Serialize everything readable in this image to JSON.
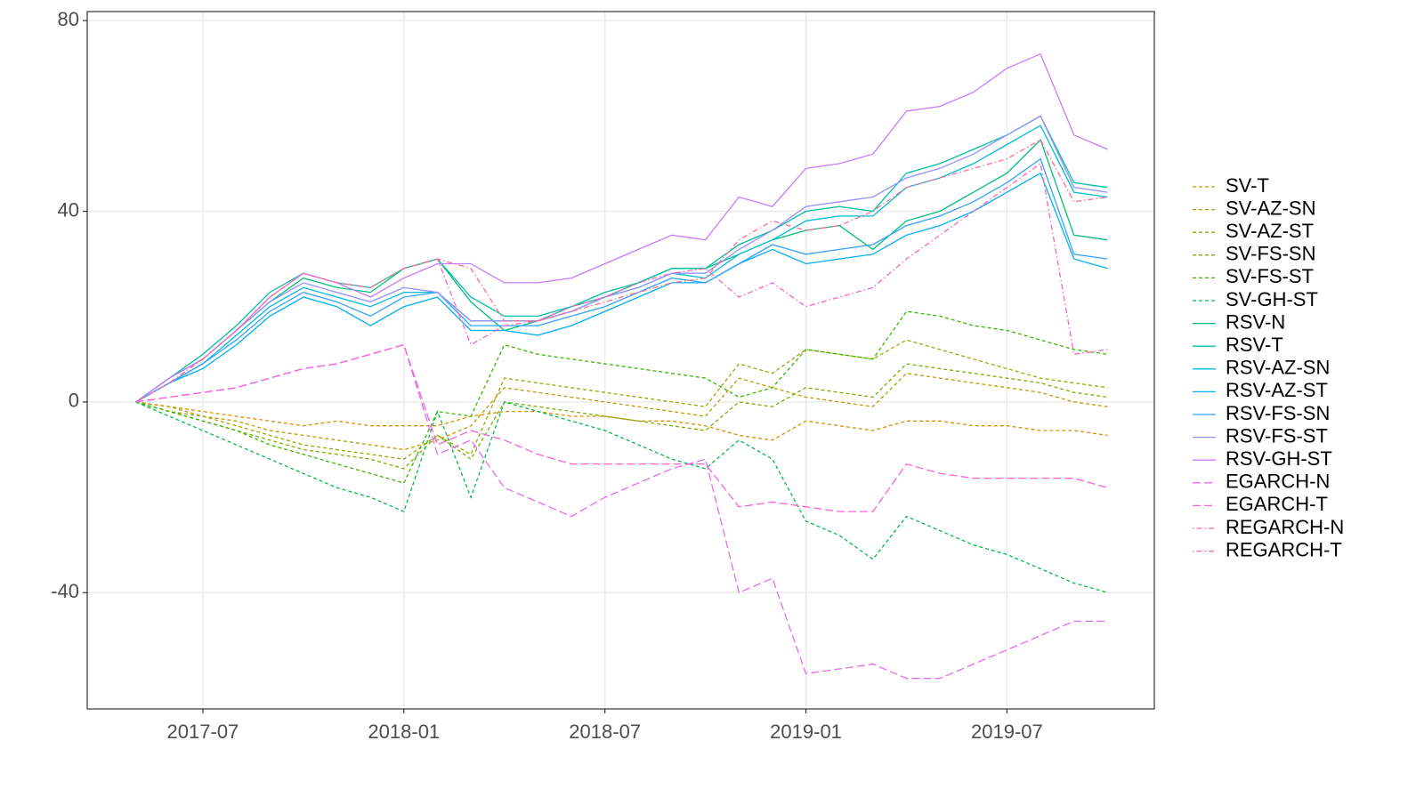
{
  "chart_data": {
    "type": "line",
    "x": [
      "2017-05",
      "2017-06",
      "2017-07",
      "2017-08",
      "2017-09",
      "2017-10",
      "2017-11",
      "2017-12",
      "2018-01",
      "2018-02",
      "2018-03",
      "2018-04",
      "2018-05",
      "2018-06",
      "2018-07",
      "2018-08",
      "2018-09",
      "2018-10",
      "2018-11",
      "2018-12",
      "2019-01",
      "2019-02",
      "2019-03",
      "2019-04",
      "2019-05",
      "2019-06",
      "2019-07",
      "2019-08",
      "2019-09",
      "2019-10"
    ],
    "xlim": [
      "2017-04",
      "2019-11"
    ],
    "xticks": [
      "2017-07",
      "2018-01",
      "2018-07",
      "2019-01",
      "2019-07"
    ],
    "ylim": [
      -64.4,
      81.9
    ],
    "yticks": [
      -40,
      0,
      40,
      80
    ],
    "grid": true,
    "legend": "right",
    "series": [
      {
        "name": "SV-T",
        "color": "#D89000",
        "linetype": "dashed",
        "values": [
          0,
          -1,
          -2,
          -3,
          -4,
          -5,
          -4,
          -5,
          -5,
          -5,
          -3,
          -2,
          -2,
          -3,
          -3,
          -4,
          -4,
          -5,
          -7,
          -8,
          -4,
          -5,
          -6,
          -4,
          -4,
          -5,
          -5,
          -6,
          -6,
          -7
        ]
      },
      {
        "name": "SV-AZ-SN",
        "color": "#BB9D00",
        "linetype": "dashed",
        "values": [
          0,
          -1,
          -3,
          -4,
          -6,
          -7,
          -8,
          -9,
          -10,
          -8,
          -5,
          3,
          2,
          1,
          0,
          -1,
          -2,
          -3,
          5,
          3,
          1,
          0,
          -1,
          6,
          5,
          4,
          3,
          2,
          0,
          -1
        ]
      },
      {
        "name": "SV-AZ-ST",
        "color": "#9CA700",
        "linetype": "dashed",
        "values": [
          0,
          -2,
          -3,
          -5,
          -7,
          -9,
          -10,
          -11,
          -12,
          -7,
          -11,
          5,
          4,
          3,
          2,
          1,
          0,
          -1,
          8,
          6,
          11,
          10,
          9,
          13,
          11,
          9,
          7,
          5,
          4,
          3
        ]
      },
      {
        "name": "SV-FS-SN",
        "color": "#79AF00",
        "linetype": "dashed",
        "values": [
          0,
          -2,
          -4,
          -6,
          -8,
          -10,
          -11,
          -12,
          -14,
          -7,
          -12,
          0,
          -1,
          -2,
          -3,
          -4,
          -5,
          -6,
          0,
          -1,
          3,
          2,
          1,
          8,
          7,
          6,
          5,
          4,
          2,
          1
        ]
      },
      {
        "name": "SV-FS-ST",
        "color": "#39B600",
        "linetype": "dashed",
        "values": [
          0,
          -2,
          -4,
          -6,
          -9,
          -11,
          -13,
          -15,
          -17,
          -2,
          -3,
          12,
          10,
          9,
          8,
          7,
          6,
          5,
          1,
          3,
          11,
          10,
          9,
          19,
          18,
          16,
          15,
          13,
          11,
          10
        ]
      },
      {
        "name": "SV-GH-ST",
        "color": "#00BB4E",
        "linetype": "dashed",
        "values": [
          0,
          -3,
          -6,
          -9,
          -12,
          -15,
          -18,
          -20,
          -23,
          -2,
          -20,
          0,
          -2,
          -4,
          -6,
          -9,
          -12,
          -14,
          -8,
          -12,
          -25,
          -28,
          -33,
          -24,
          -27,
          -30,
          -32,
          -35,
          -38,
          -40
        ]
      },
      {
        "name": "RSV-N",
        "color": "#00BF7D",
        "linetype": "solid",
        "values": [
          0,
          5,
          9,
          15,
          21,
          26,
          24,
          23,
          28,
          30,
          21,
          15,
          17,
          20,
          22,
          25,
          28,
          28,
          31,
          34,
          36,
          37,
          32,
          38,
          40,
          44,
          48,
          55,
          35,
          34
        ]
      },
      {
        "name": "RSV-T",
        "color": "#00C1A3",
        "linetype": "solid",
        "values": [
          0,
          5,
          10,
          16,
          23,
          27,
          25,
          24,
          28,
          30,
          22,
          18,
          18,
          20,
          23,
          25,
          28,
          28,
          33,
          36,
          40,
          41,
          40,
          48,
          50,
          53,
          56,
          60,
          46,
          45
        ]
      },
      {
        "name": "RSV-AZ-SN",
        "color": "#00BCD8",
        "linetype": "solid",
        "values": [
          0,
          4,
          8,
          14,
          20,
          24,
          22,
          20,
          23,
          23,
          17,
          17,
          17,
          19,
          22,
          24,
          27,
          26,
          31,
          34,
          38,
          39,
          39,
          45,
          47,
          50,
          54,
          58,
          44,
          43
        ]
      },
      {
        "name": "RSV-AZ-ST",
        "color": "#00B0F6",
        "linetype": "solid",
        "values": [
          0,
          4,
          7,
          12,
          18,
          22,
          20,
          16,
          20,
          22,
          15,
          15,
          14,
          16,
          19,
          22,
          25,
          25,
          29,
          32,
          29,
          30,
          31,
          35,
          37,
          40,
          44,
          48,
          30,
          28
        ]
      },
      {
        "name": "RSV-FS-SN",
        "color": "#35A2FF",
        "linetype": "solid",
        "values": [
          0,
          4,
          8,
          13,
          19,
          23,
          21,
          18,
          22,
          23,
          16,
          16,
          16,
          18,
          20,
          23,
          26,
          25,
          29,
          33,
          31,
          32,
          33,
          37,
          39,
          42,
          46,
          51,
          31,
          30
        ]
      },
      {
        "name": "RSV-FS-ST",
        "color": "#9590FF",
        "linetype": "solid",
        "values": [
          0,
          5,
          9,
          15,
          21,
          25,
          23,
          21,
          24,
          23,
          17,
          17,
          17,
          19,
          22,
          24,
          27,
          27,
          32,
          36,
          41,
          42,
          43,
          47,
          49,
          52,
          56,
          60,
          45,
          44
        ]
      },
      {
        "name": "RSV-GH-ST",
        "color": "#C77CFF",
        "linetype": "solid",
        "values": [
          0,
          5,
          9,
          15,
          22,
          27,
          25,
          22,
          26,
          29,
          29,
          25,
          25,
          26,
          29,
          32,
          35,
          34,
          43,
          41,
          49,
          50,
          52,
          61,
          62,
          65,
          70,
          73,
          56,
          53
        ]
      },
      {
        "name": "EGARCH-N",
        "color": "#E76BF3",
        "linetype": "longdash",
        "values": [
          0,
          1,
          2,
          3,
          5,
          7,
          8,
          10,
          12,
          -11,
          -8,
          -18,
          -21,
          -24,
          -20,
          -17,
          -14,
          -12,
          -40,
          -37,
          -57,
          -56,
          -55,
          -58,
          -58,
          -55,
          -52,
          -49,
          -46,
          -46
        ]
      },
      {
        "name": "EGARCH-T",
        "color": "#F962DD",
        "linetype": "longdash",
        "values": [
          0,
          1,
          2,
          3,
          5,
          7,
          8,
          10,
          12,
          -9,
          -6,
          -8,
          -11,
          -13,
          -13,
          -13,
          -13,
          -13,
          -22,
          -21,
          -22,
          -23,
          -23,
          -13,
          -15,
          -16,
          -16,
          -16,
          -16,
          -18
        ]
      },
      {
        "name": "REGARCH-N",
        "color": "#FF62BC",
        "linetype": "dotdash",
        "values": [
          0,
          4,
          9,
          15,
          22,
          27,
          25,
          24,
          28,
          30,
          12,
          16,
          17,
          20,
          22,
          25,
          27,
          28,
          22,
          25,
          20,
          22,
          24,
          30,
          35,
          40,
          45,
          50,
          10,
          11
        ]
      },
      {
        "name": "REGARCH-T",
        "color": "#FF6C91",
        "linetype": "dotdash",
        "values": [
          0,
          4,
          9,
          15,
          22,
          27,
          25,
          24,
          28,
          30,
          28,
          17,
          17,
          19,
          21,
          23,
          25,
          26,
          34,
          38,
          36,
          37,
          40,
          45,
          47,
          49,
          51,
          55,
          42,
          43
        ]
      }
    ]
  }
}
